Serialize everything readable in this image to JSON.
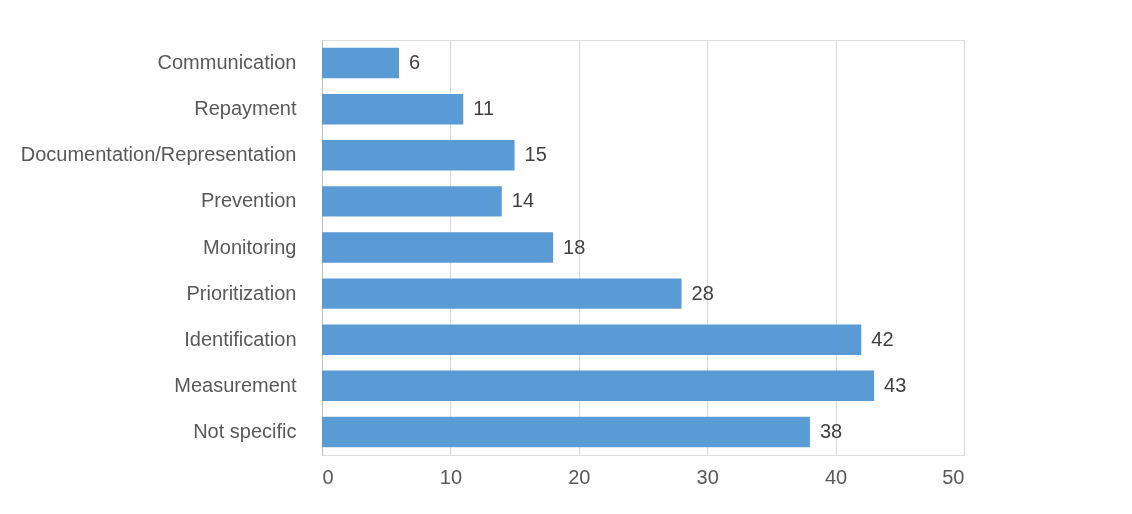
{
  "chart_data": {
    "type": "bar",
    "orientation": "horizontal",
    "categories": [
      "Communication",
      "Repayment",
      "Documentation/Representation",
      "Prevention",
      "Monitoring",
      "Prioritization",
      "Identification",
      "Measurement",
      "Not specific"
    ],
    "values": [
      6,
      11,
      15,
      14,
      18,
      28,
      42,
      43,
      38
    ],
    "color": "#5b9bd5",
    "xlim": [
      0,
      50
    ],
    "xticks": [
      0,
      10,
      20,
      30,
      40,
      50
    ],
    "grid": "x",
    "data_labels": true
  }
}
